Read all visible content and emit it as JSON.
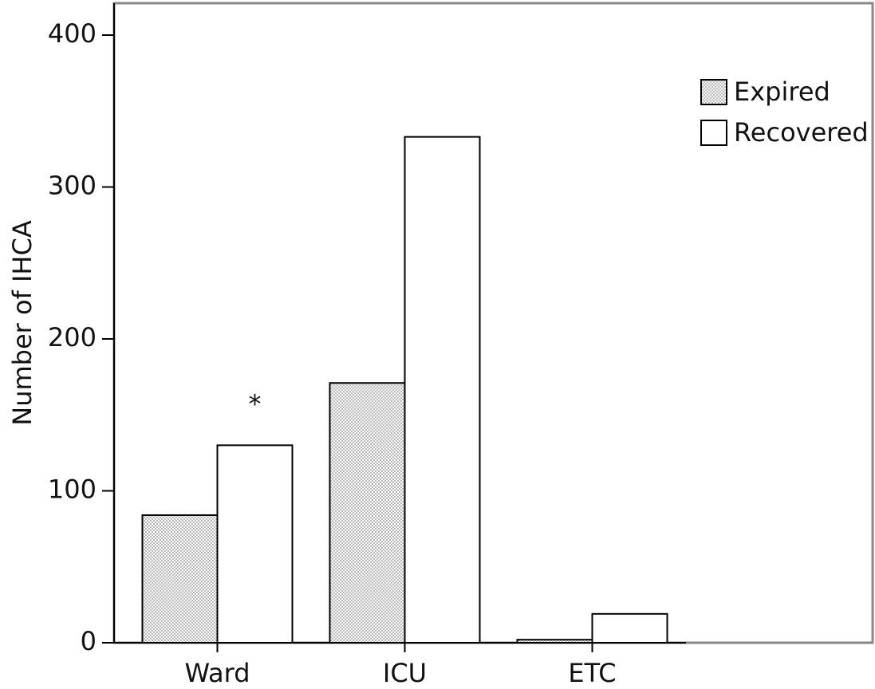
{
  "chart_data": {
    "type": "bar",
    "y_label": "Number of IHCA",
    "categories": [
      "Ward",
      "ICU",
      "ETC"
    ],
    "series": [
      {
        "name": "Expired",
        "color": "#b8b8b8",
        "values": [
          84,
          171,
          2
        ]
      },
      {
        "name": "Recovered",
        "color": "#ffffff",
        "values": [
          130,
          333,
          19
        ]
      }
    ],
    "annotations": [
      "*"
    ],
    "ylim": [
      0,
      421
    ],
    "yticks": [
      0,
      100,
      200,
      300,
      400
    ]
  }
}
